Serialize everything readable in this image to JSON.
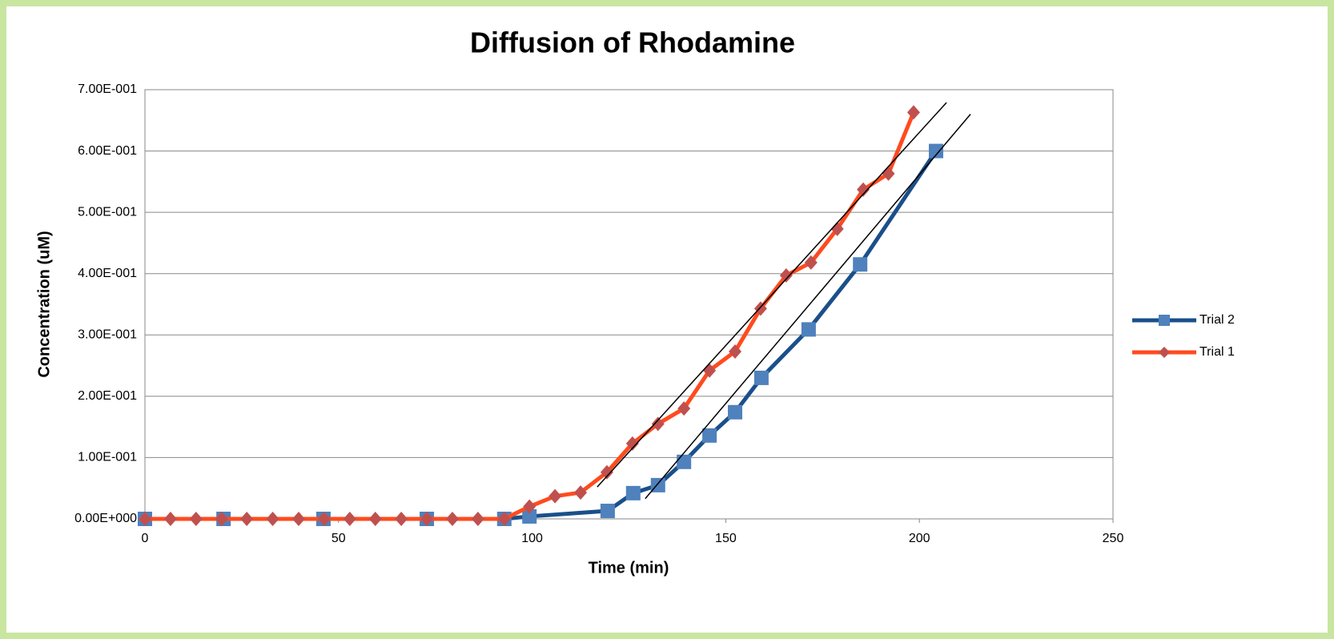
{
  "chart_data": {
    "type": "line",
    "title": "Diffusion of Rhodamine",
    "x_label": "Time (min)",
    "y_label": "Concentration (uM)",
    "xlim": [
      0,
      250
    ],
    "xticks": [
      0,
      50,
      100,
      150,
      200,
      250
    ],
    "ylim": [
      0,
      0.7
    ],
    "yticks": [
      {
        "value": 0,
        "label": "0.00E+000"
      },
      {
        "value": 0.1,
        "label": "1.00E-001"
      },
      {
        "value": 0.2,
        "label": "2.00E-001"
      },
      {
        "value": 0.3,
        "label": "3.00E-001"
      },
      {
        "value": 0.4,
        "label": "4.00E-001"
      },
      {
        "value": 0.5,
        "label": "5.00E-001"
      },
      {
        "value": 0.6,
        "label": "6.00E-001"
      },
      {
        "value": 0.7,
        "label": "7.00E-001"
      }
    ],
    "grid": true,
    "legend": "right",
    "series": [
      {
        "name": "Trial 2",
        "color": "#1a4f8a",
        "marker_color": "#4f81bd",
        "marker": "square",
        "x": [
          0,
          20.3,
          46.1,
          72.8,
          92.8,
          99.3,
          119.5,
          126.1,
          132.5,
          139.2,
          145.8,
          152.4,
          159.2,
          171.4,
          184.7,
          204.3
        ],
        "values": [
          0,
          0,
          0,
          0,
          0,
          0.004,
          0.013,
          0.042,
          0.055,
          0.093,
          0.136,
          0.174,
          0.23,
          0.309,
          0.415,
          0.6
        ]
      },
      {
        "name": "Trial 1",
        "color": "#ff4b1f",
        "marker_color": "#c0504d",
        "marker": "diamond",
        "x": [
          0,
          6.6,
          13.2,
          19.8,
          26.3,
          33,
          39.7,
          46.3,
          52.9,
          59.5,
          66.2,
          72.8,
          79.4,
          86,
          92.8,
          99.3,
          105.9,
          112.5,
          119.3,
          125.9,
          132.5,
          139.2,
          145.8,
          152.4,
          159,
          165.6,
          172,
          178.8,
          185.5,
          192,
          198.5
        ],
        "values": [
          0,
          0,
          0,
          0,
          0,
          0,
          0,
          0,
          0,
          0,
          0,
          0,
          0,
          0,
          0,
          0.02,
          0.037,
          0.043,
          0.076,
          0.123,
          0.155,
          0.18,
          0.242,
          0.273,
          0.343,
          0.397,
          0.418,
          0.473,
          0.537,
          0.563,
          0.663
        ]
      }
    ],
    "trendlines": [
      {
        "color": "#000000",
        "x": [
          116.8,
          207
        ],
        "values": [
          0.052,
          0.679
        ]
      },
      {
        "color": "#000000",
        "x": [
          129.2,
          213.2
        ],
        "values": [
          0.033,
          0.66
        ]
      }
    ]
  }
}
